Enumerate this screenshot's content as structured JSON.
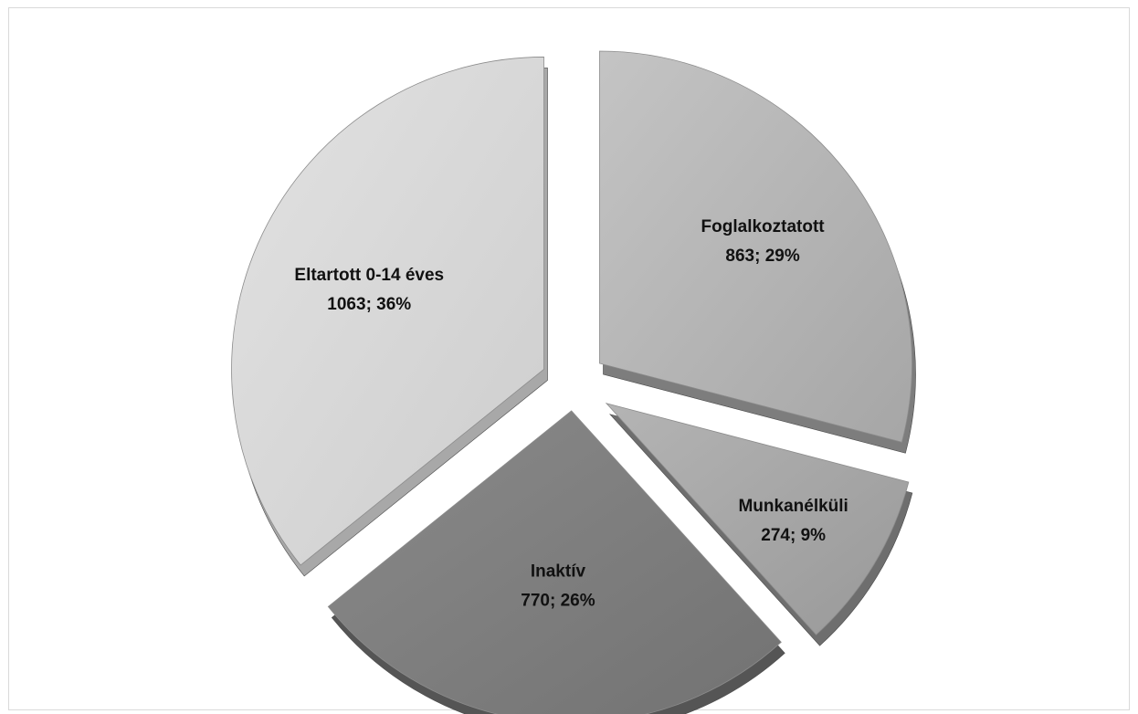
{
  "chart_data": {
    "type": "pie",
    "title": "",
    "exploded": true,
    "style": "3d",
    "slices": [
      {
        "label": "Foglalkoztatott",
        "value": 863,
        "percent_label": "863; 29%",
        "color": "#b0b0b0",
        "side_color": "#7d7d7d"
      },
      {
        "label": "Munkanélküli",
        "value": 274,
        "percent_label": "274; 9%",
        "color": "#a3a3a3",
        "side_color": "#6e6e6e"
      },
      {
        "label": "Inaktív",
        "value": 770,
        "percent_label": "770; 26%",
        "color": "#7f7f7f",
        "side_color": "#555555"
      },
      {
        "label": "Eltartott 0-14 éves",
        "value": 1063,
        "percent_label": "1063; 36%",
        "color": "#d6d6d6",
        "side_color": "#a8a8a8"
      }
    ]
  }
}
